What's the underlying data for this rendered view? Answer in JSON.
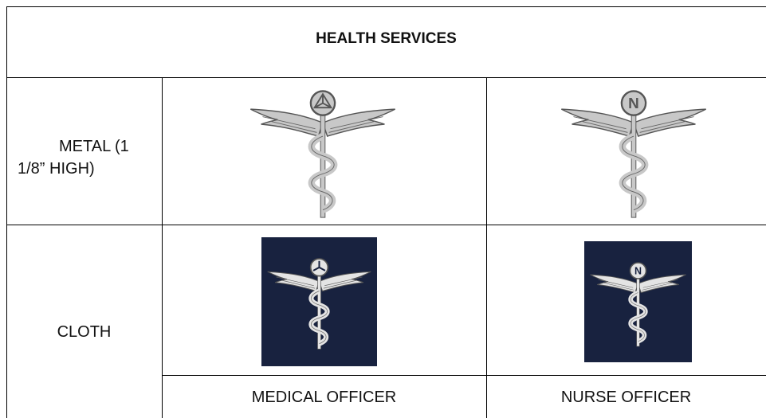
{
  "table": {
    "title": "HEALTH SERVICES",
    "rows": [
      {
        "label": "METAL (1 1/8” HIGH)"
      },
      {
        "label": "CLOTH"
      }
    ],
    "columns": [
      "MEDICAL OFFICER",
      "NURSE OFFICER"
    ]
  },
  "emblem_letter": "N"
}
